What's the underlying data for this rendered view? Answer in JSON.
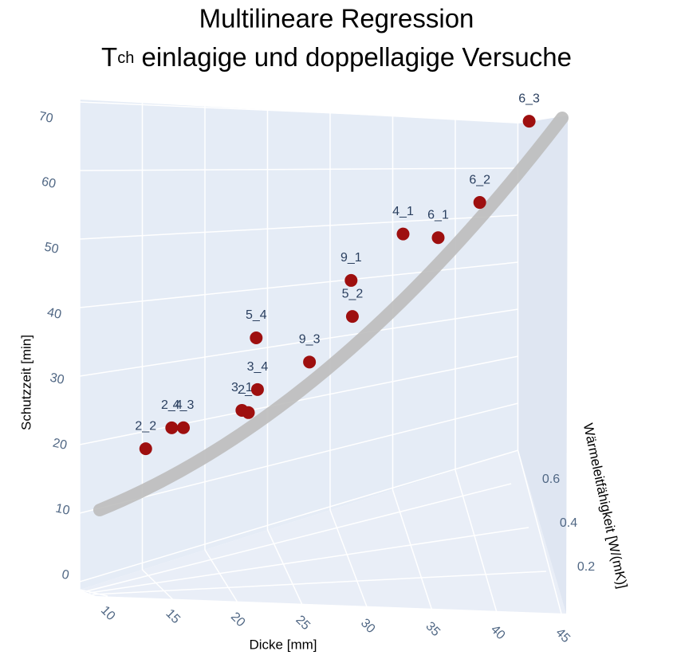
{
  "chart_data": {
    "type": "scatter3d",
    "title": "Multilineare Regression",
    "subtitle_prefix": "T",
    "subtitle_sub": "ch",
    "subtitle_rest": "einlagige und doppellagige Versuche",
    "x_label": "Dicke [mm]",
    "y_label": "Wärmeleitfähigkeit [W/(mK)]",
    "z_label": "Schutzzeit [min]",
    "color": "#9e0f0f",
    "labels": [
      "2_2",
      "2_4",
      "4_3",
      "3_1",
      "2_1",
      "3_4",
      "5_4",
      "9_3",
      "5_2",
      "9_1",
      "4_1",
      "6_1",
      "6_2",
      "6_3"
    ],
    "x": [
      15.2,
      17.2,
      18.1,
      22.6,
      23.1,
      23.8,
      23.7,
      27.8,
      31.1,
      31.0,
      35.0,
      37.7,
      40.9,
      44.7
    ],
    "y": [
      0.2,
      0.2,
      0.2,
      0.2,
      0.2,
      0.2,
      0.2,
      0.2,
      0.2,
      0.2,
      0.2,
      0.2,
      0.2,
      0.2
    ],
    "z": [
      16.1,
      19.5,
      19.6,
      22.7,
      22.4,
      26.0,
      33.9,
      30.6,
      37.9,
      43.4,
      50.9,
      50.6,
      56.3,
      69.1
    ],
    "xticks": [
      10,
      15,
      20,
      25,
      30,
      35,
      40,
      45
    ],
    "yticks": [
      0.2,
      0.4,
      0.6
    ],
    "zticks": [
      0,
      10,
      20,
      30,
      40,
      50,
      60,
      70
    ]
  }
}
